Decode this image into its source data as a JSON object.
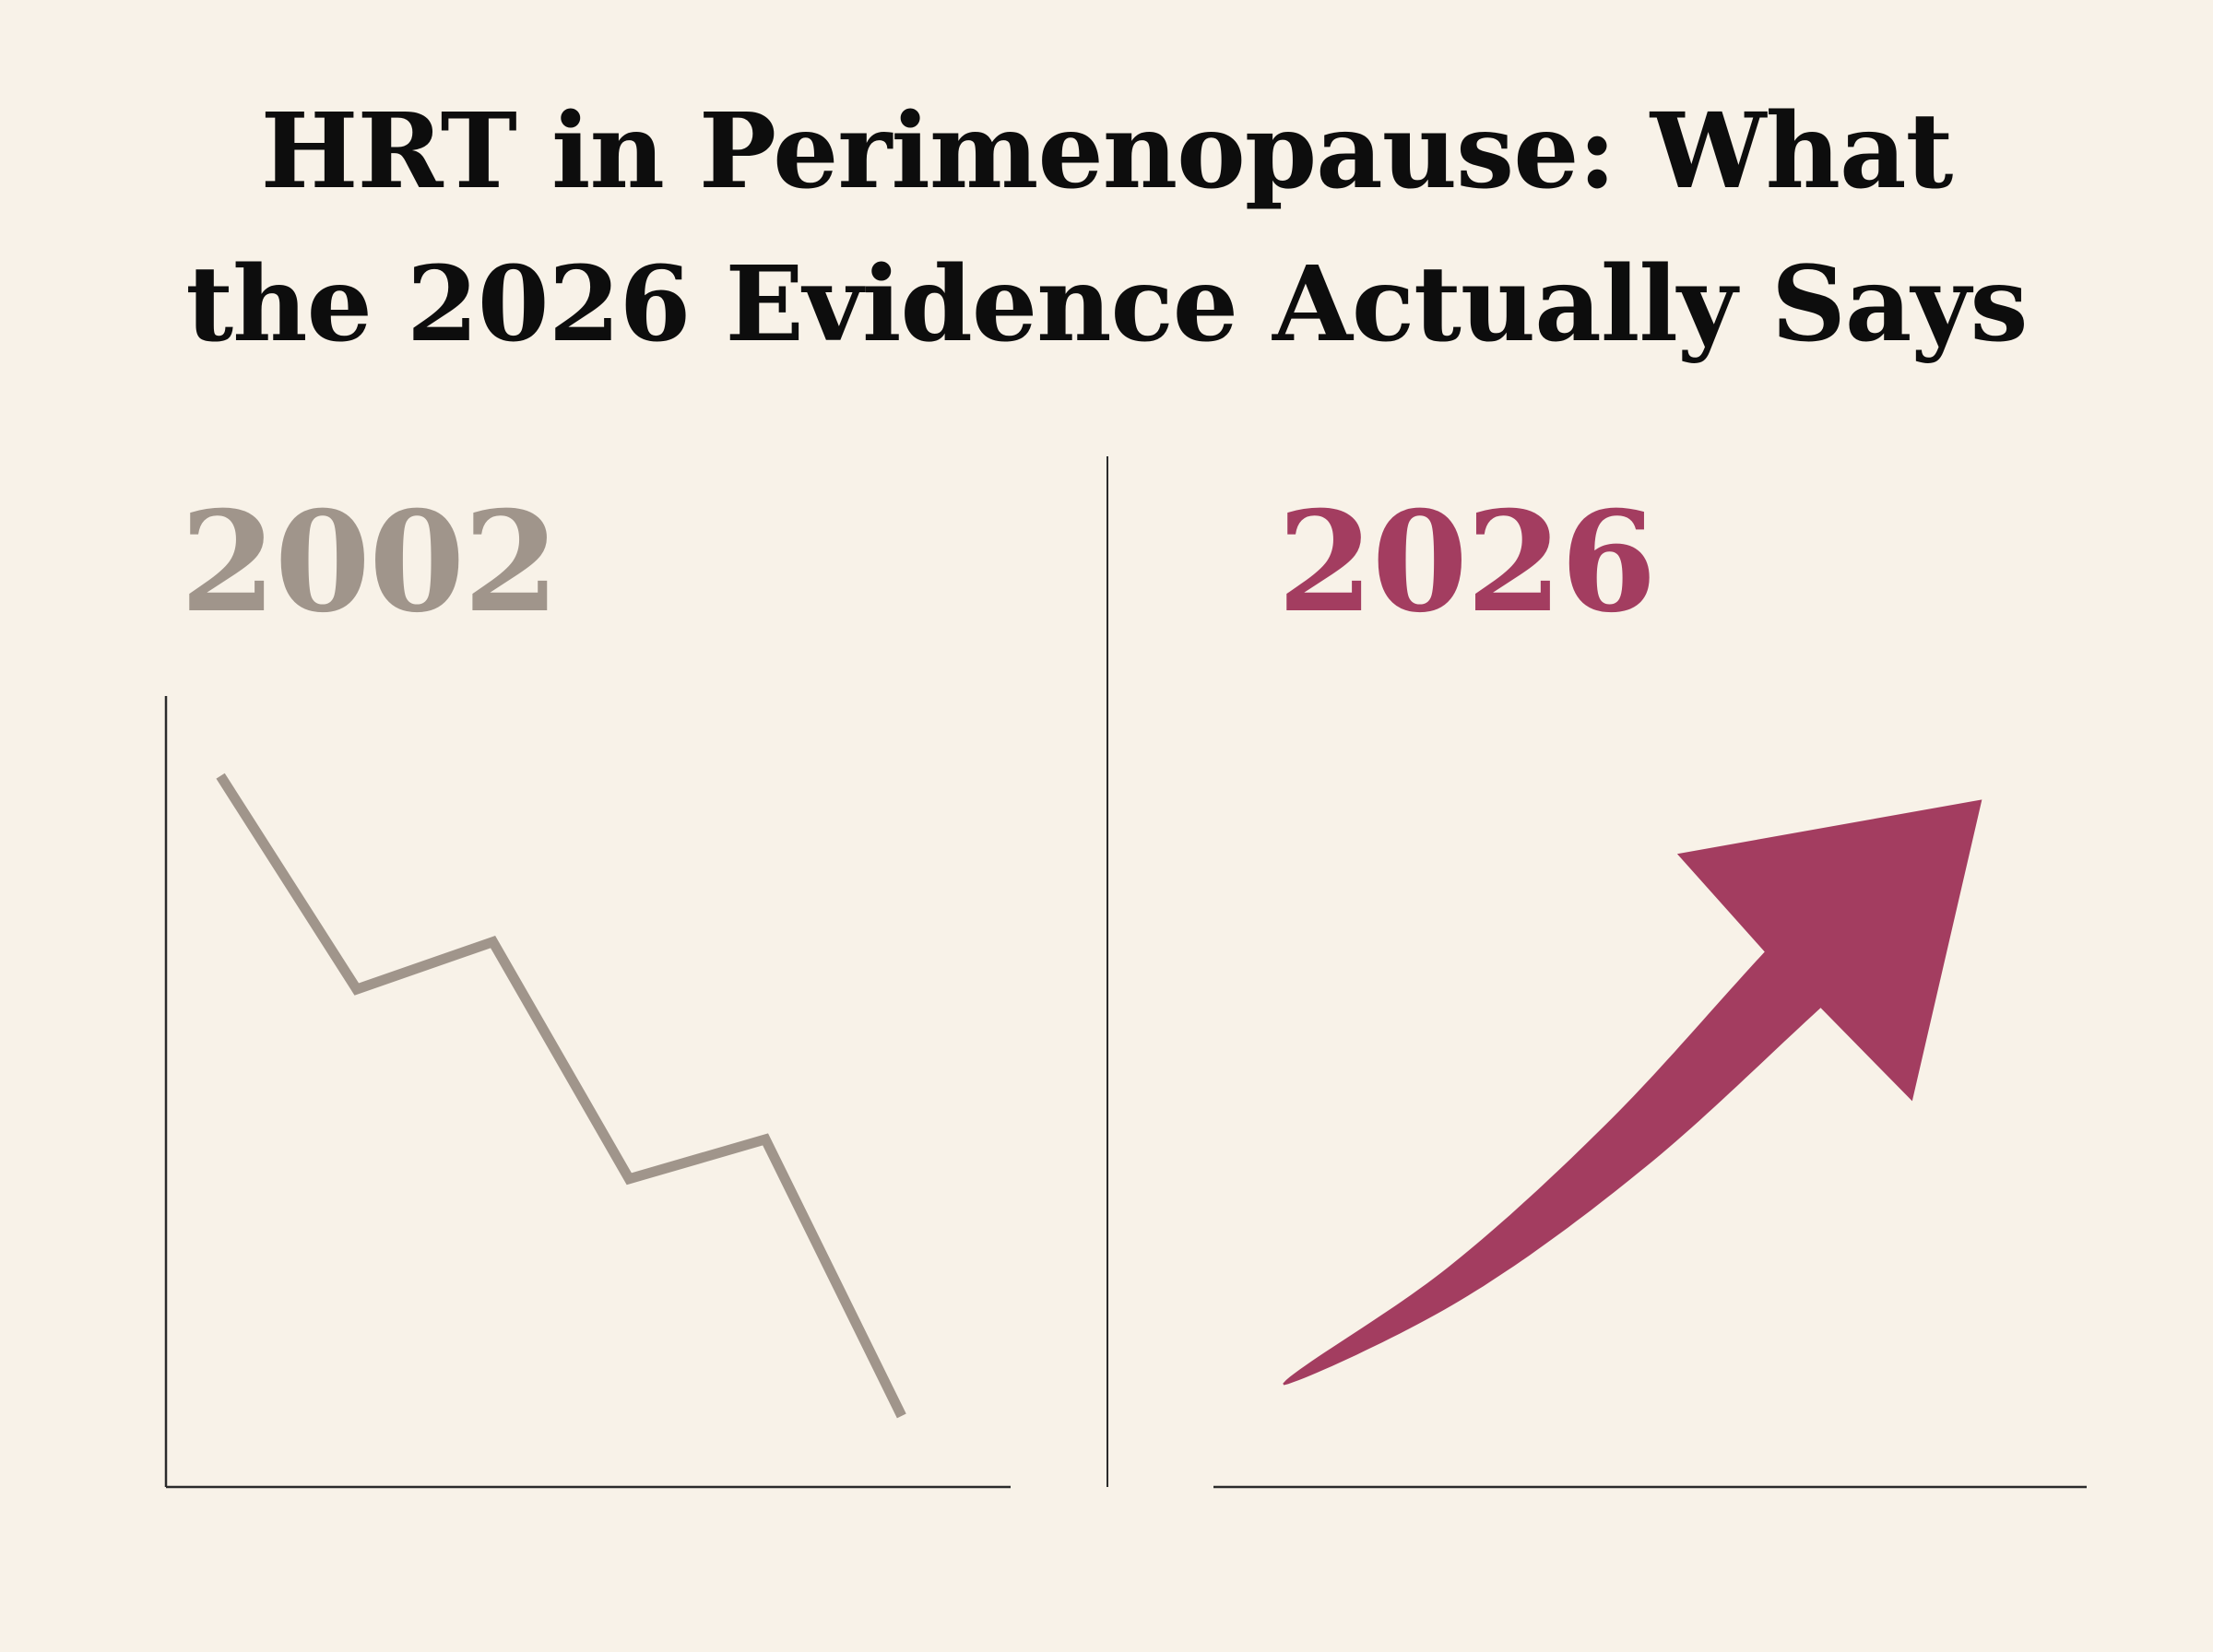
{
  "title": {
    "line1": "HRT in Perimenopause: What",
    "line2": "the 2026 Evidence Actually Says"
  },
  "colors": {
    "background": "#f8f2e8",
    "title": "#0d0d0d",
    "left_series": "#a0958b",
    "right_series": "#a33d60",
    "axis": "#2b2b2b"
  },
  "chart_data": [
    {
      "type": "line",
      "panel_label": "2002",
      "trend": "declining",
      "series": [
        {
          "values": [
            9.0,
            6.3,
            6.9,
            3.9,
            4.4,
            0.9
          ]
        }
      ],
      "x": [
        1,
        2,
        3,
        4,
        5,
        6
      ],
      "xlim": [
        0.6,
        6.8
      ],
      "ylim": [
        0,
        10
      ],
      "xlabel": "",
      "ylabel": "",
      "grid": false,
      "tick_labels": false
    },
    {
      "type": "line",
      "panel_label": "2026",
      "trend": "rising",
      "series": [
        {
          "values": [
            1.3,
            2.6,
            4.4,
            6.6,
            8.7
          ],
          "marker": "arrow"
        }
      ],
      "x": [
        1,
        2,
        3,
        4,
        5
      ],
      "xlim": [
        0.6,
        5.6
      ],
      "ylim": [
        0,
        10
      ],
      "xlabel": "",
      "ylabel": "",
      "grid": false,
      "tick_labels": false
    }
  ]
}
